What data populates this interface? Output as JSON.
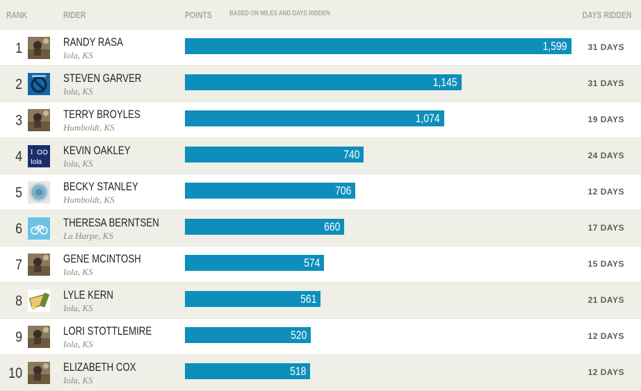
{
  "header": {
    "rank": "RANK",
    "rider": "RIDER",
    "points": "POINTS",
    "points_note": "BASED ON MILES AND DAYS RIDDEN",
    "days": "DAYS RIDDEN"
  },
  "max_points": 1599,
  "colors": {
    "bar": "#0e8fbb",
    "header_bg": "#efefe8",
    "alt_row_bg": "#efefe8"
  },
  "riders": [
    {
      "rank": "1",
      "name": "RANDY RASA",
      "location": "Iola, KS",
      "points": 1599,
      "points_label": "1,599",
      "days": "31 DAYS",
      "avatar": "photo-icon"
    },
    {
      "rank": "2",
      "name": "STEVEN GARVER",
      "location": "Iola, KS",
      "points": 1145,
      "points_label": "1,145",
      "days": "31 DAYS",
      "avatar": "no-sign-icon"
    },
    {
      "rank": "3",
      "name": "TERRY BROYLES",
      "location": "Humboldt, KS",
      "points": 1074,
      "points_label": "1,074",
      "days": "19 DAYS",
      "avatar": "photo-icon"
    },
    {
      "rank": "4",
      "name": "KEVIN OAKLEY",
      "location": "Iola, KS",
      "points": 740,
      "points_label": "740",
      "days": "24 DAYS",
      "avatar": "i-bike-iola-icon"
    },
    {
      "rank": "5",
      "name": "BECKY STANLEY",
      "location": "Humboldt, KS",
      "points": 706,
      "points_label": "706",
      "days": "12 DAYS",
      "avatar": "badge-icon"
    },
    {
      "rank": "6",
      "name": "THERESA BERNTSEN",
      "location": "La Harpe, KS",
      "points": 660,
      "points_label": "660",
      "days": "17 DAYS",
      "avatar": "bicycle-icon"
    },
    {
      "rank": "7",
      "name": "GENE MCINTOSH",
      "location": "Iola, KS",
      "points": 574,
      "points_label": "574",
      "days": "15 DAYS",
      "avatar": "photo-icon"
    },
    {
      "rank": "8",
      "name": "LYLE KERN",
      "location": "Iola, KS",
      "points": 561,
      "points_label": "561",
      "days": "21 DAYS",
      "avatar": "cartoon-icon"
    },
    {
      "rank": "9",
      "name": "LORI STOTTLEMIRE",
      "location": "Iola, KS",
      "points": 520,
      "points_label": "520",
      "days": "12 DAYS",
      "avatar": "photo-icon"
    },
    {
      "rank": "10",
      "name": "ELIZABETH COX",
      "location": "Iola, KS",
      "points": 518,
      "points_label": "518",
      "days": "12 DAYS",
      "avatar": "photo-icon"
    }
  ]
}
